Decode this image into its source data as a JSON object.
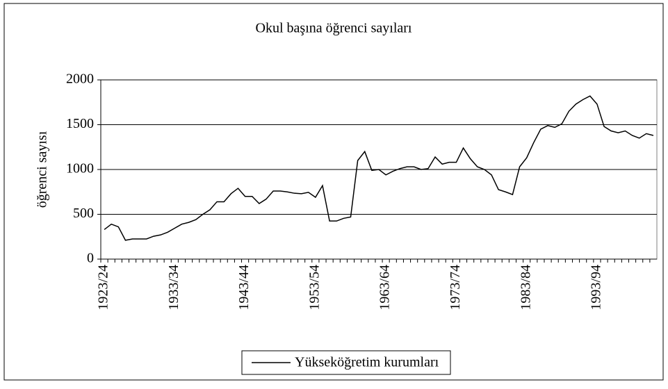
{
  "chart_data": {
    "type": "line",
    "title": "Okul başına öğrenci sayıları",
    "y_label": "öğrenci sayısı",
    "categories": [
      "1923/24",
      null,
      null,
      null,
      null,
      null,
      null,
      null,
      null,
      null,
      "1933/34",
      null,
      null,
      null,
      null,
      null,
      null,
      null,
      null,
      null,
      "1943/44",
      null,
      null,
      null,
      null,
      null,
      null,
      null,
      null,
      null,
      "1953/54",
      null,
      null,
      null,
      null,
      null,
      null,
      null,
      null,
      null,
      "1963/64",
      null,
      null,
      null,
      null,
      null,
      null,
      null,
      null,
      null,
      "1973/74",
      null,
      null,
      null,
      null,
      null,
      null,
      null,
      null,
      null,
      "1983/84",
      null,
      null,
      null,
      null,
      null,
      null,
      null,
      null,
      null,
      "1993/94",
      null,
      null,
      null,
      null,
      null,
      null,
      null,
      null
    ],
    "series": [
      {
        "name": "Yükseköğretim kurumları",
        "color": "#000000",
        "values": [
          330,
          390,
          360,
          210,
          225,
          225,
          225,
          255,
          270,
          300,
          345,
          390,
          410,
          440,
          500,
          550,
          640,
          640,
          730,
          790,
          700,
          700,
          620,
          670,
          760,
          760,
          750,
          735,
          730,
          745,
          690,
          820,
          425,
          425,
          455,
          470,
          1100,
          1200,
          990,
          1000,
          940,
          980,
          1010,
          1030,
          1030,
          1000,
          1010,
          1140,
          1060,
          1080,
          1080,
          1240,
          1120,
          1030,
          1000,
          940,
          775,
          750,
          720,
          1030,
          1130,
          1300,
          1450,
          1490,
          1470,
          1510,
          1650,
          1730,
          1780,
          1820,
          1730,
          1480,
          1430,
          1410,
          1430,
          1380,
          1350,
          1400,
          1380
        ]
      }
    ],
    "ylim": [
      0,
      2000
    ],
    "yticks": [
      0,
      500,
      1000,
      1500,
      2000
    ],
    "grid": true,
    "legend": "bottom"
  }
}
